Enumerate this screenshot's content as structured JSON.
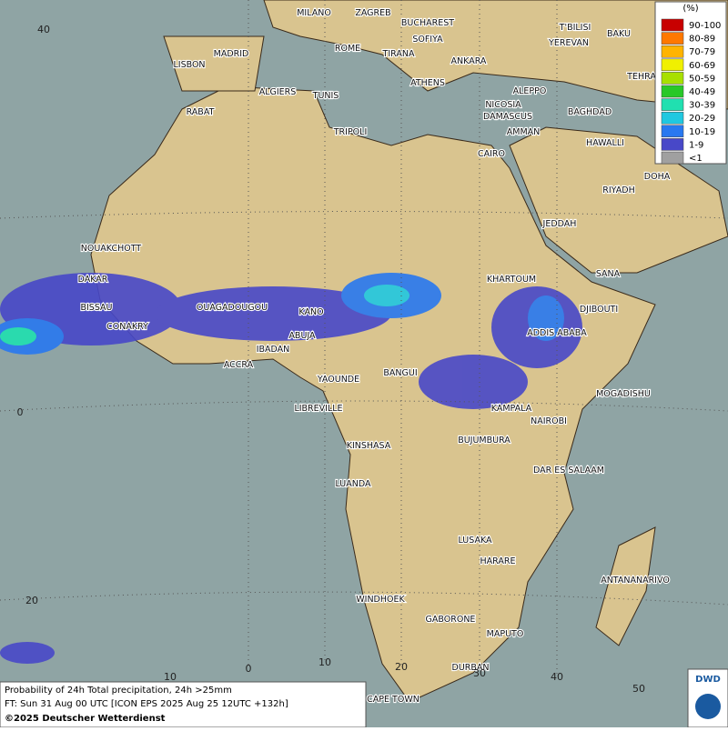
{
  "title": "Probability of 24h Total precipitation, 24h >25mm",
  "forecast_time": "FT: Sun 31 Aug 00 UTC [ICON EPS 2025 Aug 25 12UTC +132h]",
  "copyright": "©2025 Deutscher Wetterdienst",
  "logo": "DWD",
  "legend": {
    "unit": "(%)",
    "items": [
      {
        "label": "90-100",
        "color": "#c80000"
      },
      {
        "label": "80-89",
        "color": "#ff7800"
      },
      {
        "label": "70-79",
        "color": "#ffb400"
      },
      {
        "label": "60-69",
        "color": "#f0f000"
      },
      {
        "label": "50-59",
        "color": "#a8e000"
      },
      {
        "label": "40-49",
        "color": "#28c828"
      },
      {
        "label": "30-39",
        "color": "#20e0b0"
      },
      {
        "label": "20-29",
        "color": "#20c8e0"
      },
      {
        "label": "10-19",
        "color": "#2878f0"
      },
      {
        "label": "1-9",
        "color": "#4848c8"
      },
      {
        "label": "<1",
        "color": "#a0a0a0"
      }
    ]
  },
  "cities": [
    "MILANO",
    "ZAGREB",
    "BUCHAREST",
    "BAKU",
    "T'BILISI",
    "YEREVAN",
    "SOFIYA",
    "MADRID",
    "ROME",
    "TIRANA",
    "ANKARA",
    "LISBON",
    "TEHRA",
    "ATHENS",
    "ALGIERS",
    "TUNIS",
    "ALEPPO",
    "RABAT",
    "NICOSIA",
    "BAGHDAD",
    "DAMASCUS",
    "AMMAN",
    "TRIPOLI",
    "HAWALLI",
    "CAIRO",
    "DOHA",
    "RIYADH",
    "NOUAKCHOTT",
    "JEDDAH",
    "SANA",
    "DAKAR",
    "KHARTOUM",
    "BISSAU",
    "DJIBOUTI",
    "OUAGADOUGOU",
    "KANO",
    "CONAKRY",
    "ABUJA",
    "ADDIS ABABA",
    "IBADAN",
    "ACCRA",
    "YAOUNDE",
    "BANGUI",
    "MOGADISHU",
    "LIBREVILLE",
    "KAMPALA",
    "NAIROBI",
    "KINSHASA",
    "BUJUMBURA",
    "DAR ES SALAAM",
    "LUANDA",
    "LUSAKA",
    "HARARE",
    "ANTANANARIVO",
    "WINDHOEK",
    "GABORONE",
    "MAPUTO",
    "DURBAN",
    "CAPE TOWN"
  ],
  "latitude_labels": [
    "40",
    "0",
    "20"
  ],
  "longitude_labels": [
    "10",
    "0",
    "10",
    "20",
    "30",
    "40",
    "50"
  ]
}
